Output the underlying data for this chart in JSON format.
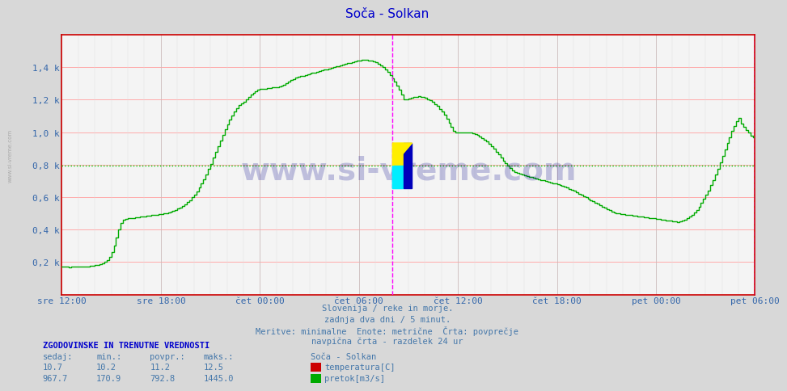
{
  "title": "Soča - Solkan",
  "title_color": "#0000cc",
  "bg_color": "#d8d8d8",
  "plot_bg_color": "#f4f4f4",
  "line_color": "#00aa00",
  "avg_value": 792.8,
  "ylim_max": 1600,
  "ytick_vals": [
    200,
    400,
    600,
    800,
    1000,
    1200,
    1400
  ],
  "ytick_labels": [
    "0,2 k",
    "0,4 k",
    "0,6 k",
    "0,8 k",
    "1,0 k",
    "1,2 k",
    "1,4 k"
  ],
  "x_tick_labels": [
    "sre 12:00",
    "sre 18:00",
    "čet 00:00",
    "čet 06:00",
    "čet 12:00",
    "čet 18:00",
    "pet 00:00",
    "pet 06:00"
  ],
  "vline_color": "#ff00ff",
  "footer_lines": [
    "Slovenija / reke in morje.",
    "zadnja dva dni / 5 minut.",
    "Meritve: minimalne  Enote: metrične  Črta: povprečje",
    "navpična črta - razdelek 24 ur"
  ],
  "info_header": "ZGODOVINSKE IN TRENUTNE VREDNOSTI",
  "col_headers": [
    "sedaj:",
    "min.:",
    "povpr.:",
    "maks.:"
  ],
  "temp_vals": [
    10.7,
    10.2,
    11.2,
    12.5
  ],
  "flow_vals": [
    967.7,
    170.9,
    792.8,
    1445.0
  ],
  "watermark": "www.si-vreme.com",
  "left_label": "www.si-vreme.com",
  "flow_data": [
    170,
    172,
    170,
    168,
    171,
    170,
    172,
    171,
    170,
    170,
    172,
    174,
    176,
    178,
    180,
    183,
    187,
    192,
    200,
    212,
    230,
    260,
    300,
    350,
    400,
    440,
    460,
    465,
    468,
    470,
    472,
    474,
    476,
    478,
    480,
    482,
    484,
    486,
    488,
    490,
    492,
    494,
    496,
    498,
    500,
    505,
    510,
    515,
    520,
    528,
    536,
    545,
    556,
    568,
    582,
    598,
    616,
    636,
    658,
    682,
    710,
    740,
    772,
    806,
    842,
    878,
    914,
    950,
    985,
    1018,
    1050,
    1078,
    1104,
    1128,
    1148,
    1165,
    1178,
    1188,
    1200,
    1218,
    1232,
    1244,
    1254,
    1260,
    1264,
    1266,
    1268,
    1270,
    1272,
    1274,
    1276,
    1278,
    1280,
    1285,
    1290,
    1300,
    1310,
    1320,
    1328,
    1334,
    1340,
    1344,
    1348,
    1352,
    1356,
    1360,
    1364,
    1368,
    1372,
    1376,
    1380,
    1384,
    1388,
    1392,
    1396,
    1400,
    1404,
    1408,
    1412,
    1416,
    1420,
    1424,
    1428,
    1432,
    1436,
    1440,
    1442,
    1444,
    1445,
    1444,
    1442,
    1440,
    1436,
    1430,
    1422,
    1412,
    1400,
    1386,
    1370,
    1352,
    1332,
    1310,
    1286,
    1260,
    1232,
    1202,
    1200,
    1205,
    1210,
    1215,
    1218,
    1220,
    1218,
    1215,
    1210,
    1204,
    1196,
    1186,
    1174,
    1160,
    1144,
    1126,
    1106,
    1084,
    1060,
    1034,
    1006,
    1000,
    1000,
    1000,
    1000,
    1000,
    1000,
    1000,
    995,
    990,
    985,
    975,
    965,
    955,
    945,
    930,
    915,
    898,
    880,
    862,
    844,
    826,
    808,
    792,
    778,
    766,
    756,
    748,
    742,
    738,
    734,
    730,
    726,
    722,
    718,
    714,
    710,
    706,
    702,
    698,
    694,
    690,
    686,
    682,
    678,
    674,
    670,
    664,
    658,
    652,
    646,
    638,
    630,
    622,
    614,
    606,
    598,
    590,
    582,
    574,
    566,
    558,
    550,
    542,
    534,
    526,
    518,
    510,
    504,
    500,
    498,
    496,
    494,
    492,
    490,
    488,
    486,
    484,
    482,
    480,
    478,
    476,
    474,
    472,
    470,
    468,
    466,
    464,
    462,
    460,
    458,
    456,
    454,
    452,
    450,
    448,
    450,
    454,
    460,
    468,
    478,
    490,
    505,
    522,
    542,
    564,
    588,
    614,
    642,
    672,
    704,
    738,
    774,
    812,
    852,
    892,
    932,
    970,
    1006,
    1038,
    1065,
    1085,
    1055,
    1035,
    1015,
    998,
    980,
    968,
    968
  ]
}
